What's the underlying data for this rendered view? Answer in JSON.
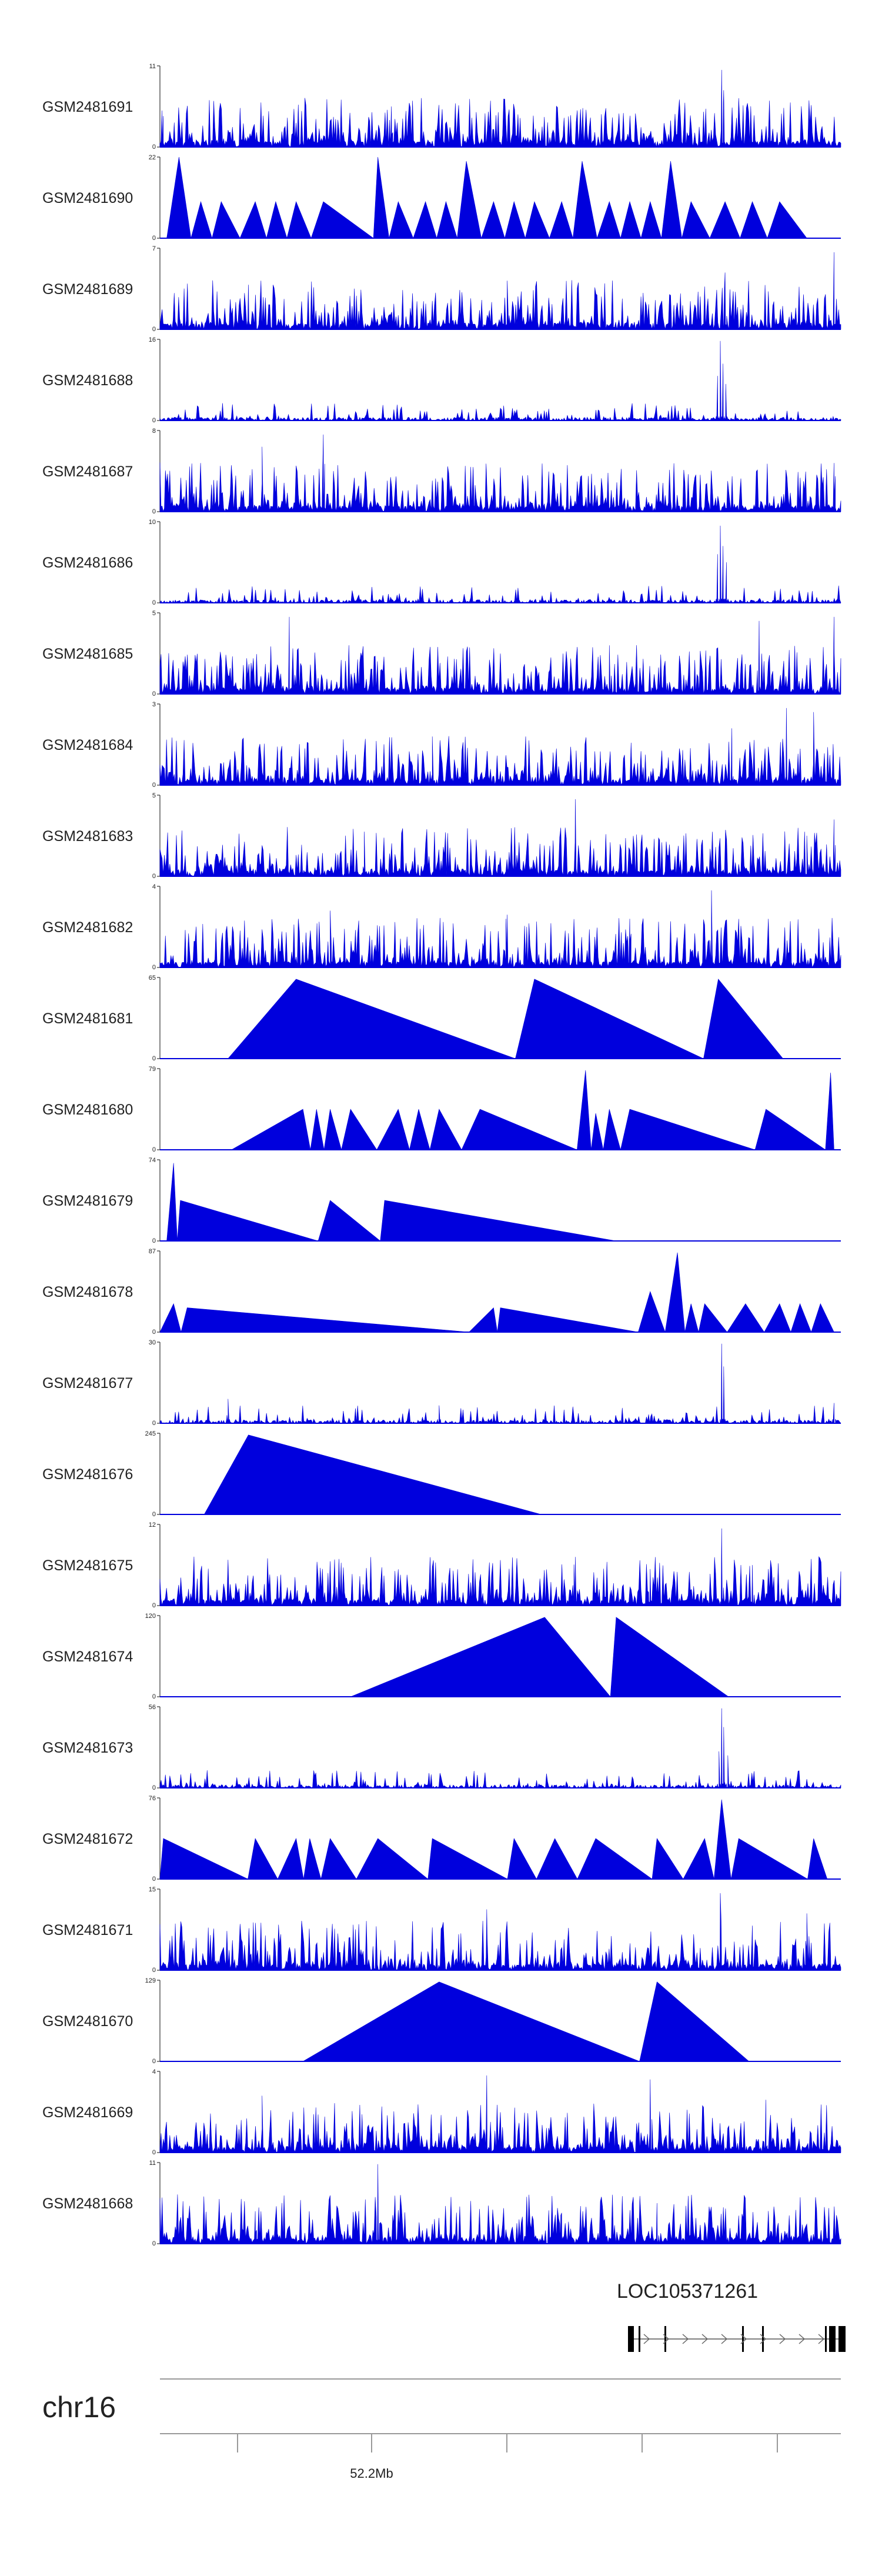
{
  "chart_data": {
    "type": "area",
    "title": "",
    "chromosome": "chr16",
    "gene": {
      "name": "LOC105371261",
      "strand": "+"
    },
    "xaxis": {
      "tick_labels": [
        "52.2Mb"
      ]
    },
    "fill_color": "#0000dd",
    "tracks": [
      {
        "name": "GSM2481691",
        "ymin": 0,
        "ymax": 11,
        "profile": "dense",
        "seed": 11,
        "peaks": [
          [
            0.003,
            0.45
          ],
          [
            0.34,
            0.5
          ],
          [
            0.825,
            0.95
          ],
          [
            0.828,
            0.7
          ]
        ]
      },
      {
        "name": "GSM2481690",
        "ymin": 0,
        "ymax": 22,
        "profile": "triangles",
        "apexes": [
          [
            0.028,
            1.0
          ],
          [
            0.06,
            0.45
          ],
          [
            0.09,
            0.45
          ],
          [
            0.14,
            0.45
          ],
          [
            0.17,
            0.45
          ],
          [
            0.2,
            0.45
          ],
          [
            0.24,
            0.45
          ],
          [
            0.32,
            1.0
          ],
          [
            0.35,
            0.45
          ],
          [
            0.39,
            0.45
          ],
          [
            0.42,
            0.45
          ],
          [
            0.45,
            0.95
          ],
          [
            0.49,
            0.45
          ],
          [
            0.52,
            0.45
          ],
          [
            0.55,
            0.45
          ],
          [
            0.59,
            0.45
          ],
          [
            0.62,
            0.95
          ],
          [
            0.66,
            0.45
          ],
          [
            0.69,
            0.45
          ],
          [
            0.72,
            0.45
          ],
          [
            0.75,
            0.95
          ],
          [
            0.78,
            0.45
          ],
          [
            0.83,
            0.45
          ],
          [
            0.87,
            0.45
          ],
          [
            0.91,
            0.45
          ]
        ],
        "extent": [
          0.01,
          0.95
        ]
      },
      {
        "name": "GSM2481689",
        "ymin": 0,
        "ymax": 7,
        "profile": "dense",
        "seed": 23,
        "peaks": [
          [
            0.99,
            0.95
          ],
          [
            0.83,
            0.7
          ],
          [
            0.51,
            0.6
          ],
          [
            0.13,
            0.55
          ]
        ]
      },
      {
        "name": "GSM2481688",
        "ymin": 0,
        "ymax": 16,
        "profile": "sparse",
        "seed": 37,
        "peaks": [
          [
            0.823,
            0.98
          ],
          [
            0.827,
            0.7
          ],
          [
            0.819,
            0.55
          ],
          [
            0.831,
            0.45
          ]
        ]
      },
      {
        "name": "GSM2481687",
        "ymin": 0,
        "ymax": 8,
        "profile": "dense",
        "seed": 41,
        "peaks": [
          [
            0.24,
            0.95
          ],
          [
            0.15,
            0.8
          ],
          [
            0.99,
            0.6
          ],
          [
            0.46,
            0.55
          ]
        ]
      },
      {
        "name": "GSM2481686",
        "ymin": 0,
        "ymax": 10,
        "profile": "sparse",
        "seed": 53,
        "peaks": [
          [
            0.823,
            0.95
          ],
          [
            0.827,
            0.7
          ],
          [
            0.819,
            0.6
          ],
          [
            0.832,
            0.5
          ]
        ]
      },
      {
        "name": "GSM2481685",
        "ymin": 0,
        "ymax": 5,
        "profile": "dense",
        "seed": 61,
        "peaks": [
          [
            0.19,
            0.95
          ],
          [
            0.99,
            0.95
          ],
          [
            0.88,
            0.9
          ],
          [
            0.66,
            0.6
          ]
        ]
      },
      {
        "name": "GSM2481684",
        "ymin": 0,
        "ymax": 3,
        "profile": "dense",
        "seed": 71,
        "peaks": [
          [
            0.92,
            0.95
          ],
          [
            0.96,
            0.9
          ],
          [
            0.4,
            0.6
          ],
          [
            0.84,
            0.7
          ]
        ]
      },
      {
        "name": "GSM2481683",
        "ymin": 0,
        "ymax": 5,
        "profile": "dense",
        "seed": 83,
        "peaks": [
          [
            0.61,
            0.95
          ],
          [
            0.99,
            0.7
          ],
          [
            0.3,
            0.55
          ],
          [
            0.95,
            0.5
          ]
        ]
      },
      {
        "name": "GSM2481682",
        "ymin": 0,
        "ymax": 4,
        "profile": "dense",
        "seed": 97,
        "peaks": [
          [
            0.81,
            0.95
          ],
          [
            0.25,
            0.7
          ],
          [
            0.51,
            0.65
          ],
          [
            0.69,
            0.6
          ]
        ]
      },
      {
        "name": "GSM2481681",
        "ymin": 0,
        "ymax": 65,
        "profile": "triangles",
        "apexes": [
          [
            0.2,
            0.98
          ],
          [
            0.55,
            0.98
          ],
          [
            0.82,
            0.98
          ]
        ],
        "extent": [
          0.1,
          0.915
        ]
      },
      {
        "name": "GSM2481680",
        "ymin": 0,
        "ymax": 79,
        "profile": "triangles",
        "apexes": [
          [
            0.21,
            0.5
          ],
          [
            0.23,
            0.5
          ],
          [
            0.25,
            0.5
          ],
          [
            0.28,
            0.5
          ],
          [
            0.35,
            0.5
          ],
          [
            0.38,
            0.5
          ],
          [
            0.41,
            0.5
          ],
          [
            0.47,
            0.5
          ],
          [
            0.625,
            0.98
          ],
          [
            0.64,
            0.45
          ],
          [
            0.66,
            0.5
          ],
          [
            0.69,
            0.5
          ],
          [
            0.89,
            0.5
          ],
          [
            0.985,
            0.95
          ]
        ],
        "extent": [
          0.105,
          0.99
        ]
      },
      {
        "name": "GSM2481679",
        "ymin": 0,
        "ymax": 74,
        "profile": "triangles",
        "apexes": [
          [
            0.02,
            0.96
          ],
          [
            0.03,
            0.5
          ],
          [
            0.25,
            0.5
          ],
          [
            0.33,
            0.5
          ]
        ],
        "extent": [
          0.01,
          0.67
        ]
      },
      {
        "name": "GSM2481678",
        "ymin": 0,
        "ymax": 87,
        "profile": "triangles",
        "apexes": [
          [
            0.02,
            0.35
          ],
          [
            0.04,
            0.3
          ],
          [
            0.49,
            0.3
          ],
          [
            0.5,
            0.3
          ],
          [
            0.72,
            0.5
          ],
          [
            0.76,
            0.98
          ],
          [
            0.78,
            0.35
          ],
          [
            0.8,
            0.35
          ],
          [
            0.86,
            0.35
          ],
          [
            0.91,
            0.35
          ],
          [
            0.94,
            0.35
          ],
          [
            0.97,
            0.35
          ]
        ],
        "extent": [
          0.0,
          0.99
        ]
      },
      {
        "name": "GSM2481677",
        "ymin": 0,
        "ymax": 30,
        "profile": "sparse",
        "seed": 113,
        "peaks": [
          [
            0.825,
            0.98
          ],
          [
            0.828,
            0.7
          ],
          [
            0.1,
            0.3
          ],
          [
            0.41,
            0.22
          ],
          [
            0.99,
            0.25
          ]
        ]
      },
      {
        "name": "GSM2481676",
        "ymin": 0,
        "ymax": 245,
        "profile": "triangles",
        "apexes": [
          [
            0.13,
            0.98
          ]
        ],
        "extent": [
          0.065,
          0.56
        ]
      },
      {
        "name": "GSM2481675",
        "ymin": 0,
        "ymax": 12,
        "profile": "dense",
        "seed": 127,
        "peaks": [
          [
            0.825,
            0.95
          ],
          [
            0.61,
            0.6
          ],
          [
            0.72,
            0.45
          ],
          [
            0.87,
            0.5
          ]
        ]
      },
      {
        "name": "GSM2481674",
        "ymin": 0,
        "ymax": 120,
        "profile": "triangles",
        "apexes": [
          [
            0.565,
            0.98
          ],
          [
            0.67,
            0.98
          ]
        ],
        "extent": [
          0.28,
          0.835
        ]
      },
      {
        "name": "GSM2481673",
        "ymin": 0,
        "ymax": 56,
        "profile": "sparse",
        "seed": 139,
        "peaks": [
          [
            0.825,
            0.98
          ],
          [
            0.828,
            0.75
          ],
          [
            0.821,
            0.45
          ],
          [
            0.834,
            0.4
          ]
        ]
      },
      {
        "name": "GSM2481672",
        "ymin": 0,
        "ymax": 76,
        "profile": "triangles",
        "apexes": [
          [
            0.005,
            0.5
          ],
          [
            0.14,
            0.5
          ],
          [
            0.2,
            0.5
          ],
          [
            0.22,
            0.5
          ],
          [
            0.25,
            0.5
          ],
          [
            0.32,
            0.5
          ],
          [
            0.4,
            0.5
          ],
          [
            0.52,
            0.5
          ],
          [
            0.58,
            0.5
          ],
          [
            0.64,
            0.5
          ],
          [
            0.73,
            0.5
          ],
          [
            0.8,
            0.5
          ],
          [
            0.825,
            0.98
          ],
          [
            0.85,
            0.5
          ],
          [
            0.96,
            0.5
          ]
        ],
        "extent": [
          0.0,
          0.98
        ]
      },
      {
        "name": "GSM2481671",
        "ymin": 0,
        "ymax": 15,
        "profile": "dense",
        "seed": 151,
        "peaks": [
          [
            0.823,
            0.95
          ],
          [
            0.48,
            0.75
          ],
          [
            0.95,
            0.7
          ],
          [
            0.87,
            0.55
          ]
        ]
      },
      {
        "name": "GSM2481670",
        "ymin": 0,
        "ymax": 129,
        "profile": "triangles",
        "apexes": [
          [
            0.41,
            0.98
          ],
          [
            0.73,
            0.98
          ]
        ],
        "extent": [
          0.21,
          0.865
        ]
      },
      {
        "name": "GSM2481669",
        "ymin": 0,
        "ymax": 4,
        "profile": "dense",
        "seed": 163,
        "peaks": [
          [
            0.48,
            0.95
          ],
          [
            0.72,
            0.9
          ],
          [
            0.15,
            0.7
          ],
          [
            0.89,
            0.65
          ]
        ]
      },
      {
        "name": "GSM2481668",
        "ymin": 0,
        "ymax": 11,
        "profile": "dense",
        "seed": 173,
        "peaks": [
          [
            0.32,
            0.98
          ],
          [
            0.73,
            0.5
          ],
          [
            0.14,
            0.4
          ],
          [
            0.59,
            0.38
          ]
        ]
      }
    ]
  }
}
